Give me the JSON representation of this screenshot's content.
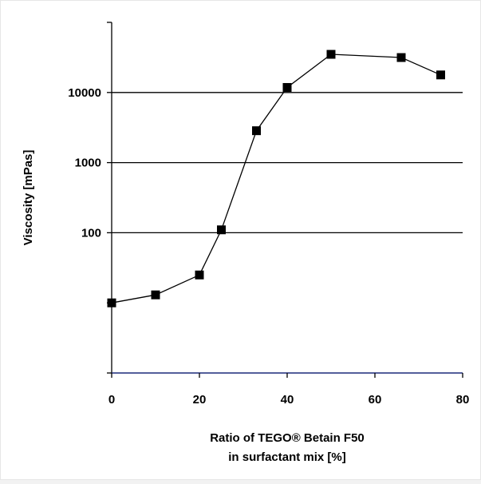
{
  "chart_data": {
    "type": "line",
    "title": "",
    "xlabel_lines": [
      "Ratio of TEGO® Betain F50",
      "in surfactant mix [%]"
    ],
    "ylabel": "Viscosity [mPas]",
    "x_scale": "linear",
    "y_scale": "log",
    "xlim": [
      0,
      80
    ],
    "ylim": [
      1,
      100000
    ],
    "x_ticks": [
      0,
      20,
      40,
      60,
      80
    ],
    "x_tick_labels": [
      "0",
      "20",
      "40",
      "60",
      "80"
    ],
    "y_ticks": [
      100,
      1000,
      10000
    ],
    "y_tick_labels": [
      "100",
      "1000",
      "10000"
    ],
    "grid": "horizontal",
    "legend": "none",
    "series": [
      {
        "marker": "square",
        "color": "#000000",
        "x": [
          0,
          10,
          20,
          25,
          33,
          40,
          50,
          66,
          75
        ],
        "y": [
          10,
          13,
          25,
          110,
          2850,
          11800,
          35000,
          31500,
          17800
        ]
      }
    ],
    "colors": {
      "background": "#ffffff",
      "page": "#f2f2f2",
      "x_axis": "#1c2a7a",
      "grid": "#000000",
      "series": "#000000"
    }
  }
}
